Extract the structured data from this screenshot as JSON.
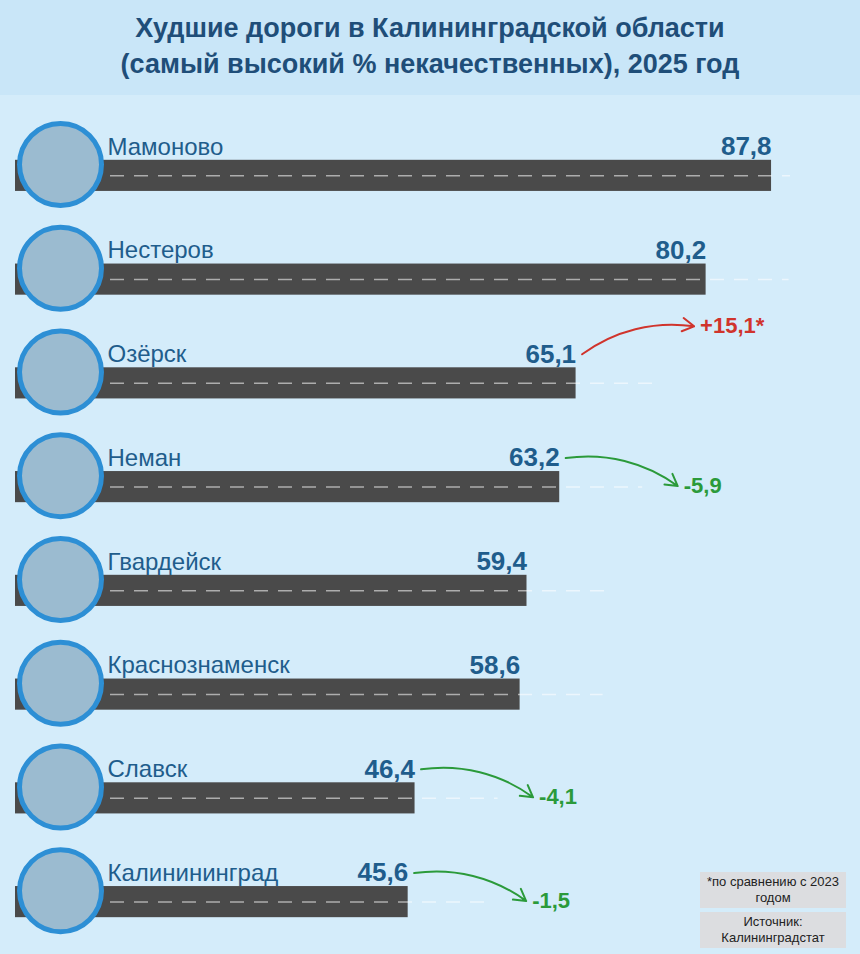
{
  "chart_data": {
    "type": "bar",
    "orientation": "horizontal",
    "title": "Худшие дороги в Калининградской области (самый высокий % некачественных), 2025 год",
    "categories": [
      "Мамоново",
      "Нестеров",
      "Озёрск",
      "Неман",
      "Гвардейск",
      "Краснознаменск",
      "Славск",
      "Калинининград"
    ],
    "values": [
      87.8,
      80.2,
      65.1,
      63.2,
      59.4,
      58.6,
      46.4,
      45.6
    ],
    "value_labels": [
      "87,8",
      "80,2",
      "65,1",
      "63,2",
      "59,4",
      "58,6",
      "46,4",
      "45,6"
    ],
    "changes": [
      null,
      null,
      15.1,
      -5.9,
      null,
      null,
      -4.1,
      -1.5
    ],
    "change_labels": [
      null,
      null,
      "+15,1*",
      "-5,9",
      null,
      null,
      "-4,1",
      "-1,5"
    ],
    "color": "#4a4a4a",
    "xlim": [
      0,
      90
    ],
    "tick_labels": false,
    "data_labels": true,
    "footnote": "*по сравнению с 2023 годом",
    "source": "Источник: Калининградстат"
  }
}
